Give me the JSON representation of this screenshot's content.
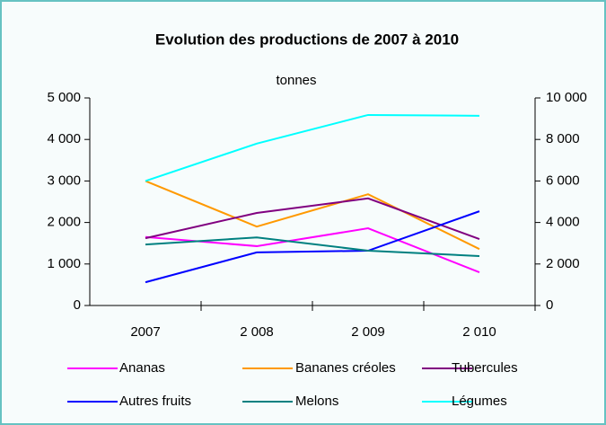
{
  "chart_data": {
    "type": "line",
    "title": "Evolution des productions de 2007 à 2010",
    "subtitle": "tonnes",
    "categories": [
      "2007",
      "2 008",
      "2 009",
      "2 010"
    ],
    "ylim": [
      0,
      5000
    ],
    "yticks": [
      0,
      {
        "value": 1000,
        "label": "1 000"
      },
      {
        "value": 2000,
        "label": "2 000"
      },
      {
        "value": 3000,
        "label": "3 000"
      },
      {
        "value": 4000,
        "label": "4 000"
      },
      {
        "value": 5000,
        "label": "5 000"
      }
    ],
    "y2lim": [
      0,
      10000
    ],
    "y2ticks": [
      0,
      {
        "value": 2000,
        "label": "2 000"
      },
      {
        "value": 4000,
        "label": "4 000"
      },
      {
        "value": 6000,
        "label": "6 000"
      },
      {
        "value": 8000,
        "label": "8 000"
      },
      {
        "value": 10000,
        "label": "10 000"
      }
    ],
    "grid": false,
    "legend": "bottom",
    "series": [
      {
        "name": "Ananas",
        "color": "#ff00ff",
        "values": [
          1650,
          1430,
          1860,
          800
        ]
      },
      {
        "name": "Bananes créoles",
        "color": "#ff9900",
        "values": [
          3000,
          1900,
          2680,
          1360
        ]
      },
      {
        "name": "Tubercules",
        "color": "#800080",
        "values": [
          1620,
          2230,
          2580,
          1600
        ]
      },
      {
        "name": "Autres fruits",
        "color": "#0000ff",
        "values": [
          560,
          1280,
          1320,
          2270
        ]
      },
      {
        "name": "Melons",
        "color": "#008080",
        "values": [
          1470,
          1640,
          1320,
          1190
        ]
      },
      {
        "name": "Légumes",
        "color": "#00ffff",
        "values": [
          6000,
          7800,
          9180,
          9140
        ],
        "axis": "y2"
      }
    ]
  }
}
